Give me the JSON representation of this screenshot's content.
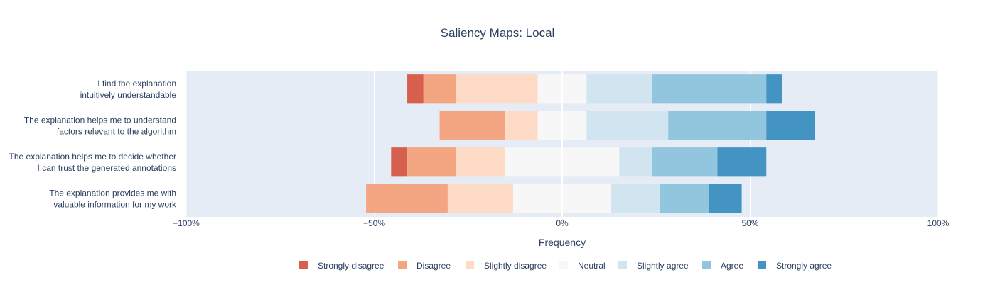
{
  "chart_data": {
    "type": "bar",
    "orientation": "horizontal",
    "stacking": "diverging",
    "title": "Saliency Maps: Local",
    "xlabel": "Frequency",
    "ylabel": "",
    "xlim": [
      -100,
      100
    ],
    "xticks": [
      -100,
      -50,
      0,
      50,
      100
    ],
    "xtick_labels": [
      "−100%",
      "−50%",
      "0%",
      "50%",
      "100%"
    ],
    "grid": true,
    "legend_position": "bottom",
    "categories": [
      [
        "I find the explanation",
        "intuitively understandable"
      ],
      [
        "The explanation helps me to understand",
        "factors relevant to the algorithm"
      ],
      [
        "The explanation helps me to decide whether",
        "I can trust the generated annotations"
      ],
      [
        "The explanation provides me with",
        "valuable information for my work"
      ]
    ],
    "series": [
      {
        "name": "Strongly disagree",
        "color": "#d6604d",
        "values": [
          4.3,
          0,
          4.3,
          0
        ]
      },
      {
        "name": "Disagree",
        "color": "#f4a582",
        "values": [
          8.7,
          17.4,
          13.0,
          21.7
        ]
      },
      {
        "name": "Slightly disagree",
        "color": "#fddbc7",
        "values": [
          21.7,
          8.7,
          13.0,
          17.4
        ]
      },
      {
        "name": "Neutral",
        "color": "#f7f7f7",
        "values": [
          13.0,
          13.0,
          30.4,
          26.1
        ]
      },
      {
        "name": "Slightly agree",
        "color": "#d1e5f0",
        "values": [
          17.4,
          21.7,
          8.7,
          13.0
        ]
      },
      {
        "name": "Agree",
        "color": "#92c5de",
        "values": [
          30.4,
          26.1,
          17.4,
          13.0
        ]
      },
      {
        "name": "Strongly agree",
        "color": "#4393c3",
        "values": [
          4.3,
          13.0,
          13.0,
          8.7
        ]
      }
    ]
  }
}
